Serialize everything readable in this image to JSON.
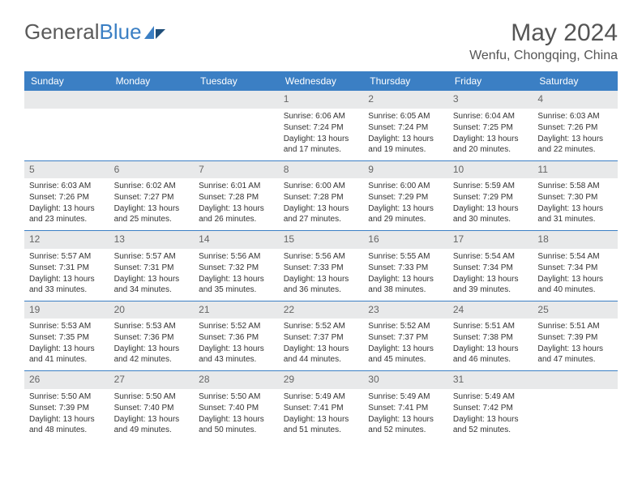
{
  "logo": {
    "text1": "General",
    "text2": "Blue"
  },
  "title": "May 2024",
  "location": "Wenfu, Chongqing, China",
  "colors": {
    "header_bg": "#3b7fc4",
    "header_text": "#ffffff",
    "daynum_bg": "#e8e9ea",
    "daynum_text": "#666666",
    "body_text": "#333333",
    "rule": "#3b7fc4",
    "page_bg": "#ffffff"
  },
  "typography": {
    "title_fontsize": 30,
    "location_fontsize": 16,
    "dayheader_fontsize": 12,
    "daynum_fontsize": 12,
    "detail_fontsize": 10
  },
  "day_headers": [
    "Sunday",
    "Monday",
    "Tuesday",
    "Wednesday",
    "Thursday",
    "Friday",
    "Saturday"
  ],
  "weeks": [
    [
      {
        "n": "",
        "sr": "",
        "ss": "",
        "dl": ""
      },
      {
        "n": "",
        "sr": "",
        "ss": "",
        "dl": ""
      },
      {
        "n": "",
        "sr": "",
        "ss": "",
        "dl": ""
      },
      {
        "n": "1",
        "sr": "Sunrise: 6:06 AM",
        "ss": "Sunset: 7:24 PM",
        "dl": "Daylight: 13 hours and 17 minutes."
      },
      {
        "n": "2",
        "sr": "Sunrise: 6:05 AM",
        "ss": "Sunset: 7:24 PM",
        "dl": "Daylight: 13 hours and 19 minutes."
      },
      {
        "n": "3",
        "sr": "Sunrise: 6:04 AM",
        "ss": "Sunset: 7:25 PM",
        "dl": "Daylight: 13 hours and 20 minutes."
      },
      {
        "n": "4",
        "sr": "Sunrise: 6:03 AM",
        "ss": "Sunset: 7:26 PM",
        "dl": "Daylight: 13 hours and 22 minutes."
      }
    ],
    [
      {
        "n": "5",
        "sr": "Sunrise: 6:03 AM",
        "ss": "Sunset: 7:26 PM",
        "dl": "Daylight: 13 hours and 23 minutes."
      },
      {
        "n": "6",
        "sr": "Sunrise: 6:02 AM",
        "ss": "Sunset: 7:27 PM",
        "dl": "Daylight: 13 hours and 25 minutes."
      },
      {
        "n": "7",
        "sr": "Sunrise: 6:01 AM",
        "ss": "Sunset: 7:28 PM",
        "dl": "Daylight: 13 hours and 26 minutes."
      },
      {
        "n": "8",
        "sr": "Sunrise: 6:00 AM",
        "ss": "Sunset: 7:28 PM",
        "dl": "Daylight: 13 hours and 27 minutes."
      },
      {
        "n": "9",
        "sr": "Sunrise: 6:00 AM",
        "ss": "Sunset: 7:29 PM",
        "dl": "Daylight: 13 hours and 29 minutes."
      },
      {
        "n": "10",
        "sr": "Sunrise: 5:59 AM",
        "ss": "Sunset: 7:29 PM",
        "dl": "Daylight: 13 hours and 30 minutes."
      },
      {
        "n": "11",
        "sr": "Sunrise: 5:58 AM",
        "ss": "Sunset: 7:30 PM",
        "dl": "Daylight: 13 hours and 31 minutes."
      }
    ],
    [
      {
        "n": "12",
        "sr": "Sunrise: 5:57 AM",
        "ss": "Sunset: 7:31 PM",
        "dl": "Daylight: 13 hours and 33 minutes."
      },
      {
        "n": "13",
        "sr": "Sunrise: 5:57 AM",
        "ss": "Sunset: 7:31 PM",
        "dl": "Daylight: 13 hours and 34 minutes."
      },
      {
        "n": "14",
        "sr": "Sunrise: 5:56 AM",
        "ss": "Sunset: 7:32 PM",
        "dl": "Daylight: 13 hours and 35 minutes."
      },
      {
        "n": "15",
        "sr": "Sunrise: 5:56 AM",
        "ss": "Sunset: 7:33 PM",
        "dl": "Daylight: 13 hours and 36 minutes."
      },
      {
        "n": "16",
        "sr": "Sunrise: 5:55 AM",
        "ss": "Sunset: 7:33 PM",
        "dl": "Daylight: 13 hours and 38 minutes."
      },
      {
        "n": "17",
        "sr": "Sunrise: 5:54 AM",
        "ss": "Sunset: 7:34 PM",
        "dl": "Daylight: 13 hours and 39 minutes."
      },
      {
        "n": "18",
        "sr": "Sunrise: 5:54 AM",
        "ss": "Sunset: 7:34 PM",
        "dl": "Daylight: 13 hours and 40 minutes."
      }
    ],
    [
      {
        "n": "19",
        "sr": "Sunrise: 5:53 AM",
        "ss": "Sunset: 7:35 PM",
        "dl": "Daylight: 13 hours and 41 minutes."
      },
      {
        "n": "20",
        "sr": "Sunrise: 5:53 AM",
        "ss": "Sunset: 7:36 PM",
        "dl": "Daylight: 13 hours and 42 minutes."
      },
      {
        "n": "21",
        "sr": "Sunrise: 5:52 AM",
        "ss": "Sunset: 7:36 PM",
        "dl": "Daylight: 13 hours and 43 minutes."
      },
      {
        "n": "22",
        "sr": "Sunrise: 5:52 AM",
        "ss": "Sunset: 7:37 PM",
        "dl": "Daylight: 13 hours and 44 minutes."
      },
      {
        "n": "23",
        "sr": "Sunrise: 5:52 AM",
        "ss": "Sunset: 7:37 PM",
        "dl": "Daylight: 13 hours and 45 minutes."
      },
      {
        "n": "24",
        "sr": "Sunrise: 5:51 AM",
        "ss": "Sunset: 7:38 PM",
        "dl": "Daylight: 13 hours and 46 minutes."
      },
      {
        "n": "25",
        "sr": "Sunrise: 5:51 AM",
        "ss": "Sunset: 7:39 PM",
        "dl": "Daylight: 13 hours and 47 minutes."
      }
    ],
    [
      {
        "n": "26",
        "sr": "Sunrise: 5:50 AM",
        "ss": "Sunset: 7:39 PM",
        "dl": "Daylight: 13 hours and 48 minutes."
      },
      {
        "n": "27",
        "sr": "Sunrise: 5:50 AM",
        "ss": "Sunset: 7:40 PM",
        "dl": "Daylight: 13 hours and 49 minutes."
      },
      {
        "n": "28",
        "sr": "Sunrise: 5:50 AM",
        "ss": "Sunset: 7:40 PM",
        "dl": "Daylight: 13 hours and 50 minutes."
      },
      {
        "n": "29",
        "sr": "Sunrise: 5:49 AM",
        "ss": "Sunset: 7:41 PM",
        "dl": "Daylight: 13 hours and 51 minutes."
      },
      {
        "n": "30",
        "sr": "Sunrise: 5:49 AM",
        "ss": "Sunset: 7:41 PM",
        "dl": "Daylight: 13 hours and 52 minutes."
      },
      {
        "n": "31",
        "sr": "Sunrise: 5:49 AM",
        "ss": "Sunset: 7:42 PM",
        "dl": "Daylight: 13 hours and 52 minutes."
      },
      {
        "n": "",
        "sr": "",
        "ss": "",
        "dl": ""
      }
    ]
  ]
}
